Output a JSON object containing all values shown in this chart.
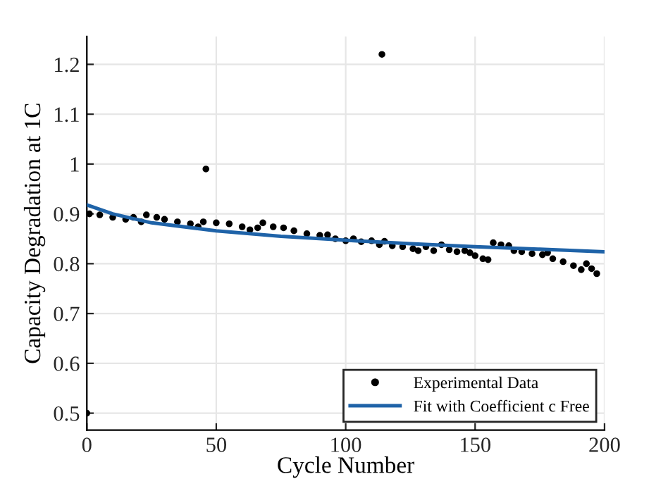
{
  "chart_data": {
    "type": "scatter",
    "xlabel": "Cycle Number",
    "ylabel": "Capacity Degradation at 1C",
    "xlim": [
      0,
      200
    ],
    "ylim": [
      0.466,
      1.256
    ],
    "xticks": [
      0,
      50,
      100,
      150,
      200
    ],
    "yticks": [
      0.5,
      0.6,
      0.7,
      0.8,
      0.9,
      1,
      1.1,
      1.2
    ],
    "grid": true,
    "legend": "bottom right",
    "series": [
      {
        "name": "Experimental Data",
        "marker": "circle",
        "color": "#000000",
        "x": [
          0,
          1,
          5,
          10,
          15,
          18,
          21,
          23,
          27,
          30,
          35,
          40,
          43,
          45,
          46,
          50,
          55,
          60,
          63,
          66,
          68,
          72,
          76,
          80,
          85,
          90,
          93,
          96,
          100,
          103,
          106,
          110,
          113,
          114,
          115,
          118,
          122,
          126,
          128,
          131,
          134,
          137,
          140,
          143,
          146,
          148,
          150,
          153,
          155,
          157,
          160,
          163,
          165,
          168,
          172,
          176,
          178,
          180,
          184,
          188,
          191,
          193,
          195,
          197
        ],
        "values": [
          0.5,
          0.9,
          0.898,
          0.893,
          0.889,
          0.893,
          0.884,
          0.898,
          0.893,
          0.889,
          0.884,
          0.88,
          0.874,
          0.884,
          0.99,
          0.882,
          0.88,
          0.874,
          0.868,
          0.872,
          0.882,
          0.874,
          0.872,
          0.866,
          0.86,
          0.857,
          0.858,
          0.85,
          0.846,
          0.85,
          0.844,
          0.846,
          0.838,
          1.22,
          0.845,
          0.836,
          0.834,
          0.83,
          0.826,
          0.834,
          0.826,
          0.838,
          0.828,
          0.824,
          0.826,
          0.822,
          0.816,
          0.81,
          0.808,
          0.842,
          0.838,
          0.836,
          0.826,
          0.824,
          0.82,
          0.818,
          0.822,
          0.81,
          0.804,
          0.796,
          0.788,
          0.8,
          0.79,
          0.78
        ]
      },
      {
        "name": "Fit with Coefficient c Free",
        "type": "line",
        "marker": "none",
        "line_style": "solid",
        "color": "#1f63a8",
        "x": [
          0,
          10,
          25,
          50,
          75,
          100,
          125,
          150,
          175,
          200
        ],
        "values": [
          0.918,
          0.9,
          0.882,
          0.866,
          0.855,
          0.847,
          0.84,
          0.834,
          0.829,
          0.824
        ]
      }
    ]
  }
}
